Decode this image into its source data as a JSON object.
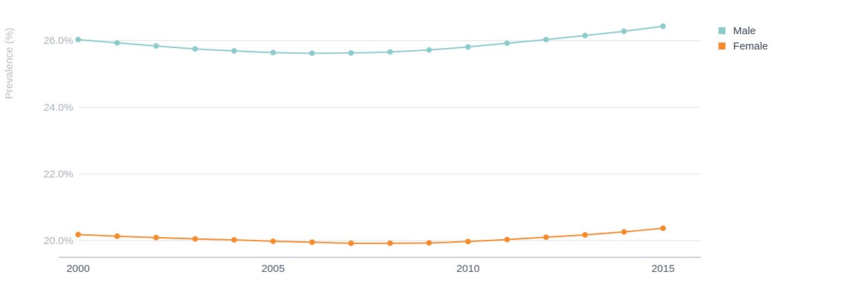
{
  "chart_data": {
    "type": "line",
    "ylabel": "Prevalence (%)",
    "xlabel": "",
    "x": [
      2000,
      2001,
      2002,
      2003,
      2004,
      2005,
      2006,
      2007,
      2008,
      2009,
      2010,
      2011,
      2012,
      2013,
      2014,
      2015
    ],
    "xticks": [
      "2000",
      "2005",
      "2010",
      "2015"
    ],
    "yticks": [
      "20.0%",
      "22.0%",
      "24.0%",
      "26.0%"
    ],
    "xlim": [
      2000,
      2016
    ],
    "ylim": [
      19.5,
      26.9
    ],
    "grid": true,
    "legend_position": "top-right",
    "series": [
      {
        "name": "Male",
        "color": "#8ccbcb",
        "values": [
          26.03,
          25.93,
          25.84,
          25.75,
          25.69,
          25.64,
          25.62,
          25.63,
          25.66,
          25.72,
          25.81,
          25.92,
          26.03,
          26.15,
          26.28,
          26.43
        ]
      },
      {
        "name": "Female",
        "color": "#f58a2c",
        "values": [
          20.18,
          20.13,
          20.09,
          20.05,
          20.02,
          19.98,
          19.95,
          19.92,
          19.92,
          19.93,
          19.97,
          20.03,
          20.1,
          20.17,
          20.26,
          20.37
        ]
      }
    ]
  },
  "colors": {
    "grid": "#dde1e6",
    "axis": "#9aa3ad"
  }
}
